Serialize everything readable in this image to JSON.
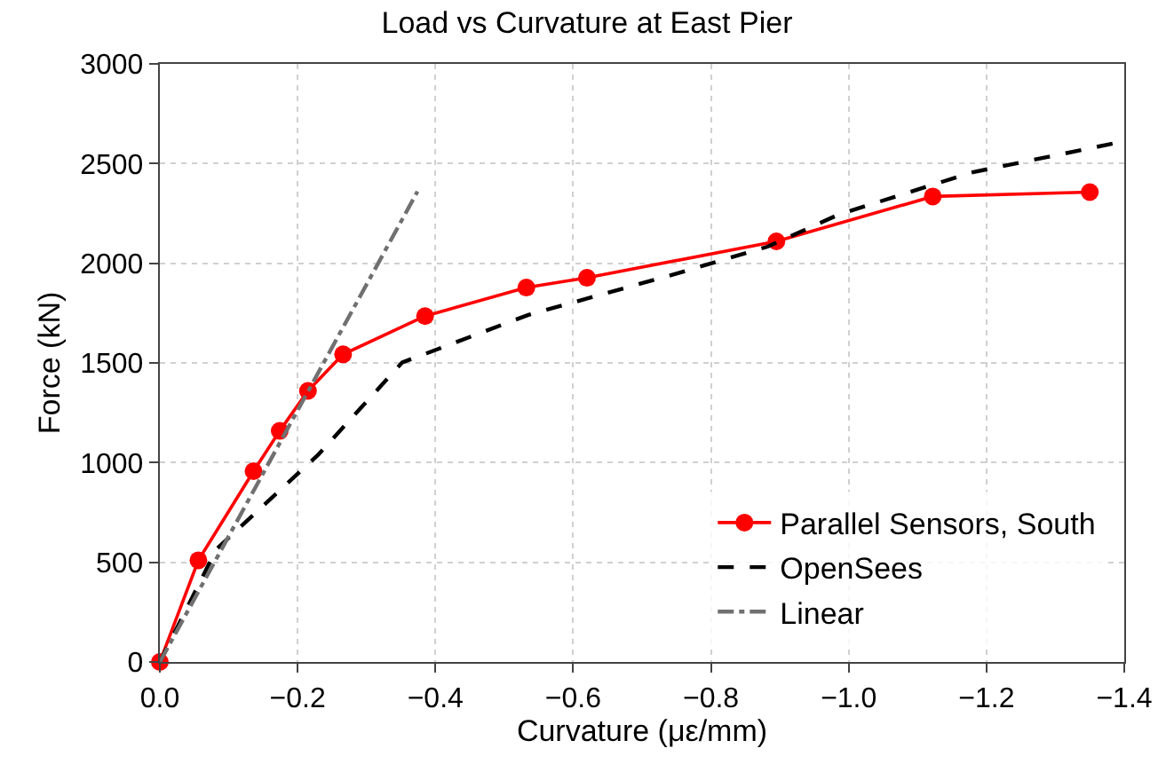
{
  "chart_data": {
    "type": "line",
    "title": "Load vs Curvature at East Pier",
    "xlabel": "Curvature (με/mm)",
    "ylabel": "Force (kN)",
    "xlim": [
      0.0,
      -1.4
    ],
    "xticks": [
      {
        "value": 0,
        "label": "0.0"
      },
      {
        "value": -0.2,
        "label": "−0.2"
      },
      {
        "value": -0.4,
        "label": "−0.4"
      },
      {
        "value": -0.6,
        "label": "−0.6"
      },
      {
        "value": -0.8,
        "label": "−0.8"
      },
      {
        "value": -1.0,
        "label": "−1.0"
      },
      {
        "value": -1.2,
        "label": "−1.2"
      },
      {
        "value": -1.4,
        "label": "−1.4"
      }
    ],
    "ylim": [
      0,
      3000
    ],
    "yticks": [
      0,
      500,
      1000,
      1500,
      2000,
      2500,
      3000
    ],
    "grid": true,
    "legend": "bottom right",
    "series": [
      {
        "name": "Parallel Sensors, South",
        "color": "#ff0000",
        "marker": "circle",
        "line_style": "solid",
        "x": [
          0,
          -0.056,
          -0.136,
          -0.174,
          -0.215,
          -0.266,
          -0.385,
          -0.532,
          -0.62,
          -0.895,
          -1.122,
          -1.35
        ],
        "values": [
          0,
          510,
          957,
          1159,
          1360,
          1543,
          1735,
          1878,
          1927,
          2110,
          2335,
          2357
        ]
      },
      {
        "name": "OpenSees",
        "color": "#000000",
        "marker": "none",
        "line_style": "dashed",
        "x": [
          0,
          -0.082,
          -0.23,
          -0.352,
          -0.387,
          -0.535,
          -0.752,
          -0.882,
          -0.986,
          -1.178,
          -1.4
        ],
        "values": [
          0,
          565,
          1040,
          1503,
          1548,
          1741,
          1950,
          2083,
          2245,
          2455,
          2612
        ]
      },
      {
        "name": "Linear",
        "color": "#707070",
        "marker": "none",
        "line_style": "dashdot",
        "x": [
          0,
          -0.374
        ],
        "values": [
          0,
          2360
        ]
      }
    ]
  }
}
